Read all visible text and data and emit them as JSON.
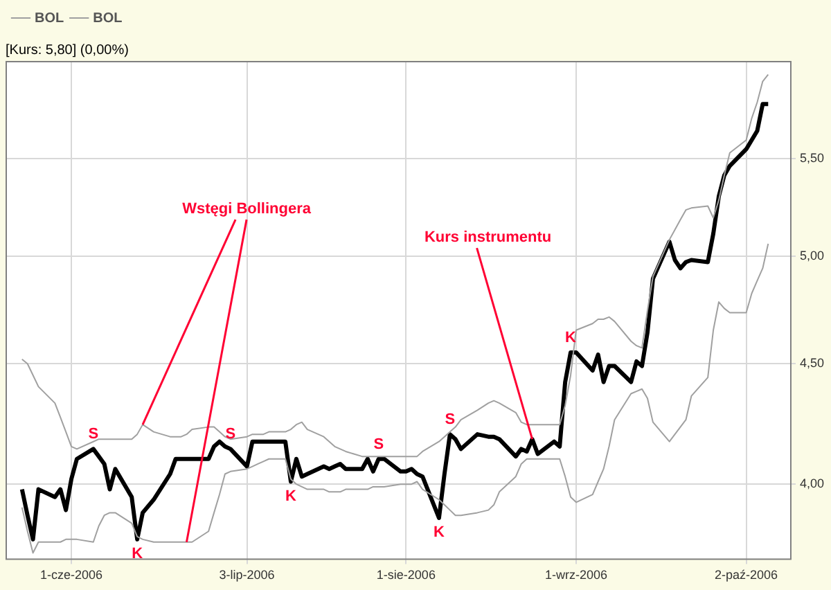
{
  "chart_data": {
    "type": "line",
    "subtitle": "[Kurs: 5,80] (0,00%)",
    "x": [
      "2006-05-23",
      "2006-05-24",
      "2006-05-25",
      "2006-05-26",
      "2006-05-29",
      "2006-05-30",
      "2006-05-31",
      "2006-06-01",
      "2006-06-02",
      "2006-06-05",
      "2006-06-06",
      "2006-06-07",
      "2006-06-08",
      "2006-06-09",
      "2006-06-12",
      "2006-06-13",
      "2006-06-14",
      "2006-06-16",
      "2006-06-19",
      "2006-06-20",
      "2006-06-21",
      "2006-06-22",
      "2006-06-23",
      "2006-06-26",
      "2006-06-27",
      "2006-06-28",
      "2006-06-29",
      "2006-06-30",
      "2006-07-03",
      "2006-07-04",
      "2006-07-05",
      "2006-07-06",
      "2006-07-07",
      "2006-07-10",
      "2006-07-11",
      "2006-07-12",
      "2006-07-13",
      "2006-07-14",
      "2006-07-17",
      "2006-07-18",
      "2006-07-19",
      "2006-07-20",
      "2006-07-21",
      "2006-07-24",
      "2006-07-25",
      "2006-07-26",
      "2006-07-27",
      "2006-07-28",
      "2006-07-31",
      "2006-08-01",
      "2006-08-02",
      "2006-08-03",
      "2006-08-04",
      "2006-08-07",
      "2006-08-08",
      "2006-08-09",
      "2006-08-10",
      "2006-08-11",
      "2006-08-14",
      "2006-08-16",
      "2006-08-17",
      "2006-08-18",
      "2006-08-21",
      "2006-08-22",
      "2006-08-23",
      "2006-08-24",
      "2006-08-25",
      "2006-08-28",
      "2006-08-29",
      "2006-08-30",
      "2006-08-31",
      "2006-09-01",
      "2006-09-04",
      "2006-09-05",
      "2006-09-06",
      "2006-09-07",
      "2006-09-08",
      "2006-09-11",
      "2006-09-12",
      "2006-09-13",
      "2006-09-14",
      "2006-09-15",
      "2006-09-18",
      "2006-09-19",
      "2006-09-20",
      "2006-09-21",
      "2006-09-22",
      "2006-09-25",
      "2006-09-26",
      "2006-09-27",
      "2006-09-28",
      "2006-09-29",
      "2006-10-02",
      "2006-10-03",
      "2006-10-04",
      "2006-10-05",
      "2006-10-06"
    ],
    "series": [
      {
        "name": "BOL",
        "color": "#a0a0a0",
        "values": [
          4.52,
          4.5,
          4.45,
          4.4,
          4.33,
          4.27,
          4.21,
          4.15,
          4.14,
          4.17,
          4.18,
          4.18,
          4.18,
          4.18,
          4.18,
          4.2,
          4.24,
          4.21,
          4.19,
          4.19,
          4.19,
          4.2,
          4.22,
          4.23,
          4.23,
          4.21,
          4.19,
          4.18,
          4.19,
          4.2,
          4.2,
          4.2,
          4.21,
          4.21,
          4.22,
          4.24,
          4.25,
          4.22,
          4.19,
          4.17,
          4.15,
          4.14,
          4.13,
          4.11,
          4.11,
          4.11,
          4.11,
          4.11,
          4.11,
          4.11,
          4.11,
          4.11,
          4.13,
          4.17,
          4.19,
          4.21,
          4.23,
          4.26,
          4.3,
          4.33,
          4.34,
          4.33,
          4.29,
          4.25,
          4.24,
          4.24,
          4.24,
          4.24,
          4.24,
          4.32,
          4.45,
          4.65,
          4.68,
          4.7,
          4.7,
          4.71,
          4.69,
          4.6,
          4.58,
          4.57,
          4.74,
          4.9,
          5.08,
          5.13,
          5.18,
          5.23,
          5.24,
          5.25,
          5.19,
          5.28,
          5.41,
          5.53,
          5.6,
          5.72,
          5.81,
          5.93,
          5.97
        ]
      },
      {
        "name": "BOL",
        "color": "#a0a0a0",
        "values": [
          3.91,
          3.82,
          3.74,
          3.78,
          3.78,
          3.78,
          3.79,
          3.79,
          3.79,
          3.78,
          3.84,
          3.88,
          3.89,
          3.89,
          3.85,
          3.8,
          3.79,
          3.78,
          3.78,
          3.78,
          3.78,
          3.78,
          3.78,
          3.82,
          3.89,
          3.96,
          4.04,
          4.05,
          4.06,
          4.07,
          4.08,
          4.09,
          4.1,
          4.1,
          4.02,
          4.0,
          3.99,
          3.98,
          3.98,
          3.97,
          3.97,
          3.97,
          3.98,
          3.98,
          3.98,
          3.99,
          3.99,
          3.99,
          4.0,
          4.0,
          4.0,
          4.01,
          3.98,
          3.94,
          3.92,
          3.9,
          3.88,
          3.88,
          3.89,
          3.9,
          3.92,
          3.97,
          4.03,
          4.08,
          4.1,
          4.1,
          4.1,
          4.1,
          4.1,
          4.03,
          3.95,
          3.93,
          3.96,
          4.01,
          4.06,
          4.15,
          4.26,
          4.37,
          4.38,
          4.39,
          4.35,
          4.25,
          4.17,
          4.2,
          4.23,
          4.26,
          4.36,
          4.44,
          4.65,
          4.78,
          4.75,
          4.73,
          4.73,
          4.82,
          4.88,
          4.94,
          5.06
        ]
      },
      {
        "color": "#000000",
        "values": [
          3.98,
          3.88,
          3.79,
          3.98,
          3.95,
          3.98,
          3.9,
          4.02,
          4.1,
          4.14,
          4.11,
          4.08,
          3.98,
          4.06,
          3.95,
          3.79,
          3.89,
          3.94,
          4.04,
          4.1,
          4.1,
          4.1,
          4.1,
          4.1,
          4.15,
          4.17,
          4.15,
          4.14,
          4.07,
          4.17,
          4.17,
          4.17,
          4.17,
          4.17,
          4.01,
          4.1,
          4.03,
          4.04,
          4.07,
          4.06,
          4.07,
          4.08,
          4.06,
          4.06,
          4.1,
          4.05,
          4.1,
          4.1,
          4.05,
          4.05,
          4.06,
          4.04,
          4.03,
          3.87,
          4.04,
          4.2,
          4.18,
          4.14,
          4.2,
          4.19,
          4.19,
          4.18,
          4.11,
          4.14,
          4.13,
          4.18,
          4.12,
          4.17,
          4.15,
          4.42,
          4.55,
          4.55,
          4.47,
          4.54,
          4.42,
          4.49,
          4.49,
          4.42,
          4.51,
          4.49,
          4.64,
          4.89,
          5.07,
          4.98,
          4.94,
          4.97,
          4.98,
          4.97,
          5.11,
          5.3,
          5.41,
          5.46,
          5.55,
          5.6,
          5.65,
          5.8,
          5.8
        ]
      }
    ],
    "xticks": [
      {
        "value": "2006-06-01",
        "label": "1-cze-2006"
      },
      {
        "value": "2006-07-03",
        "label": "3-lip-2006"
      },
      {
        "value": "2006-08-01",
        "label": "1-sie-2006"
      },
      {
        "value": "2006-09-01",
        "label": "1-wrz-2006"
      },
      {
        "value": "2006-10-02",
        "label": "2-paź-2006"
      }
    ],
    "xlim": [
      "2006-05-20",
      "2006-10-10"
    ],
    "ylim": [
      3.72,
      6.05
    ],
    "yticks": [
      {
        "value": 4,
        "label": "4,00"
      },
      {
        "value": 4.5,
        "label": "4,50"
      },
      {
        "value": 5,
        "label": "5,00"
      },
      {
        "value": 5.5,
        "label": "5,50"
      }
    ],
    "log": true,
    "grid": true,
    "legend": "top left",
    "marker": "none",
    "line_style": "solid",
    "annotations": [
      {
        "text": "S",
        "x": "2006-06-05",
        "y": 4.14
      },
      {
        "text": "K",
        "x": "2006-06-13",
        "y": 3.79
      },
      {
        "text": "S",
        "x": "2006-06-30",
        "y": 4.14
      },
      {
        "text": "K",
        "x": "2006-07-11",
        "y": 4.01
      },
      {
        "text": "S",
        "x": "2006-07-27",
        "y": 4.1
      },
      {
        "text": "K",
        "x": "2006-08-07",
        "y": 3.87
      },
      {
        "text": "S",
        "x": "2006-08-09",
        "y": 4.2
      },
      {
        "text": "K",
        "x": "2006-08-31",
        "y": 4.55
      },
      {
        "text": "Wstęgi Bollingera",
        "x": "2006-06-14",
        "y": 4.24
      },
      {
        "text": "Kurs instrumentu",
        "x": "2006-08-24",
        "y": 4.18
      }
    ]
  }
}
